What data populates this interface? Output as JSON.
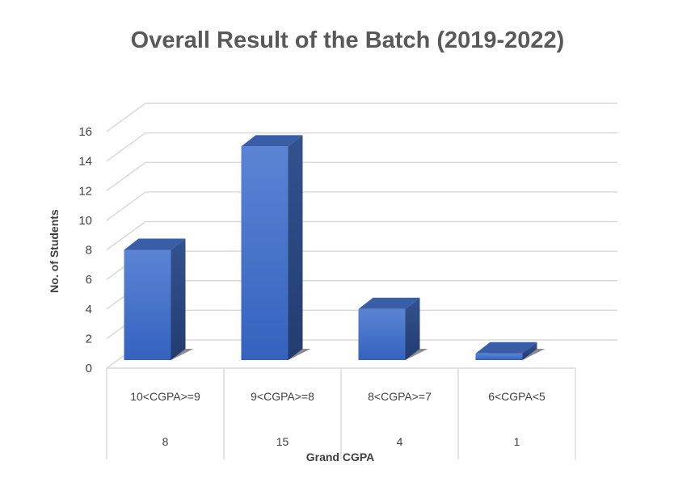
{
  "chart_data": {
    "type": "bar",
    "title": "Overall Result of the Batch (2019-2022)",
    "xlabel": "Grand CGPA",
    "ylabel": "No. of Students",
    "categories": [
      "10<CGPA>=9",
      "9<CGPA>=8",
      "8<CGPA>=7",
      "6<CGPA<5"
    ],
    "values": [
      8,
      15,
      4,
      1
    ],
    "ylim": [
      0,
      16
    ],
    "yticks": [
      0,
      2,
      4,
      6,
      8,
      10,
      12,
      14,
      16
    ],
    "grid": true,
    "legend": "none",
    "data_table": true,
    "style": "3d-column",
    "colors": {
      "bar_front": "#4472C4",
      "bar_side": "#2F4E8C",
      "bar_top": "#3A5DA8",
      "grid": "#D9D9D9",
      "text": "#404040"
    }
  }
}
